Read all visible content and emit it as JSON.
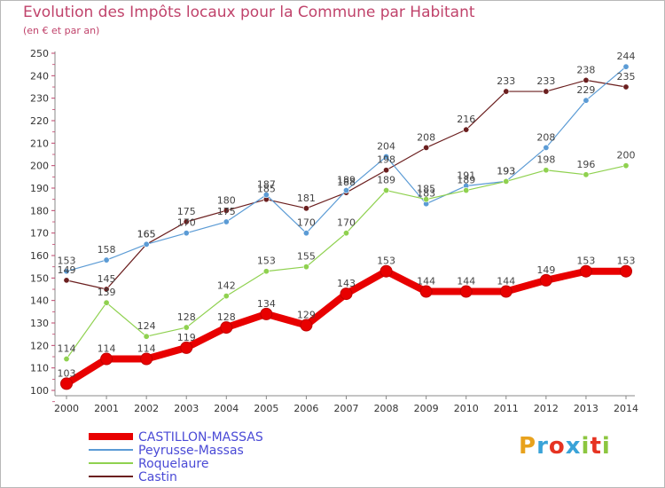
{
  "header": {
    "title": "Evolution des Impôts locaux pour la Commune par Habitant",
    "subtitle": "(en € et par an)"
  },
  "logo": {
    "text": "Proxiti",
    "colors": [
      "#e8a21d",
      "#3aa3d8",
      "#e63322",
      "#3aa3d8",
      "#8cc63f",
      "#e63322",
      "#8cc63f"
    ]
  },
  "chart_data": {
    "type": "line",
    "title": "Evolution des Impôts locaux pour la Commune par Habitant",
    "subtitle": "(en € et par an)",
    "x": [
      "2000",
      "2001",
      "2002",
      "2003",
      "2004",
      "2005",
      "2006",
      "2007",
      "2008",
      "2009",
      "2010",
      "2011",
      "2012",
      "2013",
      "2014"
    ],
    "ylim": [
      100,
      250
    ],
    "yticks": [
      100,
      110,
      120,
      130,
      140,
      150,
      160,
      170,
      180,
      190,
      200,
      210,
      220,
      230,
      240,
      250
    ],
    "grid": false,
    "legend_position": "bottom-left",
    "series": [
      {
        "name": "CASTILLON-MASSAS",
        "color": "#e80000",
        "width": 8,
        "values": [
          103,
          114,
          114,
          119,
          128,
          134,
          129,
          143,
          153,
          144,
          144,
          144,
          149,
          153,
          153
        ]
      },
      {
        "name": "Peyrusse-Massas",
        "color": "#5b9bd5",
        "width": 1.2,
        "values": [
          153,
          158,
          165,
          170,
          175,
          187,
          170,
          189,
          204,
          183,
          191,
          193,
          208,
          229,
          244
        ]
      },
      {
        "name": "Roquelaure",
        "color": "#8fd14f",
        "width": 1.2,
        "values": [
          114,
          139,
          124,
          128,
          142,
          153,
          155,
          170,
          189,
          185,
          189,
          193,
          198,
          196,
          200
        ]
      },
      {
        "name": "Castin",
        "color": "#6b1f1f",
        "width": 1.2,
        "values": [
          149,
          145,
          165,
          175,
          180,
          185,
          181,
          188,
          198,
          208,
          216,
          233,
          233,
          238,
          235
        ]
      }
    ],
    "data_labels": [
      {
        "series": 0,
        "values": [
          103,
          114,
          114,
          119,
          128,
          134,
          129,
          143,
          153,
          144,
          144,
          144,
          149,
          153,
          153
        ]
      },
      {
        "series": 1,
        "values": [
          153,
          158,
          165,
          170,
          175,
          187,
          170,
          189,
          204,
          183,
          191,
          193,
          208,
          229,
          244
        ]
      },
      {
        "series": 2,
        "values": [
          114,
          139,
          124,
          128,
          142,
          153,
          155,
          170,
          189,
          185,
          189,
          193,
          198,
          196,
          200
        ]
      },
      {
        "series": 3,
        "values": [
          149,
          145,
          165,
          175,
          180,
          185,
          181,
          188,
          198,
          208,
          216,
          233,
          233,
          238,
          235
        ]
      }
    ]
  }
}
